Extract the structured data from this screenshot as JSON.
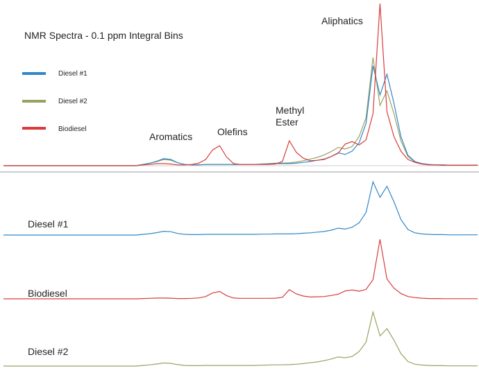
{
  "chart_data": {
    "type": "line",
    "title": "NMR Spectra - 0.1 ppm Integral Bins",
    "x": [
      0,
      1,
      2,
      3,
      4,
      5,
      6,
      7,
      8,
      9,
      10,
      11,
      12,
      13,
      14,
      15,
      16,
      17,
      18,
      19,
      20,
      21,
      22,
      23,
      24,
      25,
      26,
      27,
      28,
      29,
      30,
      31,
      32,
      33,
      34,
      35,
      36,
      37,
      38,
      39,
      40,
      41,
      42,
      43,
      44,
      45,
      46,
      47,
      48,
      49,
      50,
      51,
      52,
      53,
      54,
      55,
      56,
      57,
      58,
      59,
      60,
      61,
      62,
      63,
      64,
      65,
      66,
      67,
      68
    ],
    "series": [
      {
        "name": "Diesel #1",
        "color": "#2f86c8",
        "values": [
          0,
          0,
          0,
          0,
          0,
          0,
          0,
          0,
          0,
          0,
          0,
          0,
          0,
          0,
          0,
          0,
          0,
          0,
          0,
          0,
          0.3,
          0.6,
          1.1,
          1.7,
          1.5,
          0.7,
          0.3,
          0.2,
          0.2,
          0.3,
          0.3,
          0.3,
          0.3,
          0.3,
          0.3,
          0.3,
          0.3,
          0.4,
          0.4,
          0.5,
          0.5,
          0.5,
          0.6,
          0.8,
          1.0,
          1.3,
          1.6,
          2.2,
          3.1,
          2.7,
          3.5,
          5.5,
          10.2,
          24.0,
          17.0,
          22.0,
          15.0,
          7.0,
          2.5,
          1.0,
          0.5,
          0.3,
          0.2,
          0.2,
          0.1,
          0.1,
          0.1,
          0.1,
          0.1
        ]
      },
      {
        "name": "Diesel #2",
        "color": "#9aa060",
        "values": [
          0,
          0,
          0,
          0,
          0,
          0,
          0,
          0,
          0,
          0,
          0,
          0,
          0,
          0,
          0,
          0,
          0,
          0,
          0,
          0,
          0.3,
          0.6,
          1.0,
          1.5,
          1.3,
          0.7,
          0.3,
          0.2,
          0.2,
          0.3,
          0.3,
          0.3,
          0.3,
          0.3,
          0.3,
          0.3,
          0.3,
          0.4,
          0.5,
          0.6,
          0.6,
          0.7,
          0.9,
          1.2,
          1.6,
          2.0,
          2.6,
          3.4,
          4.4,
          4.0,
          4.6,
          7.0,
          11.5,
          26.0,
          14.5,
          18.0,
          12.5,
          6.0,
          2.2,
          0.9,
          0.5,
          0.3,
          0.2,
          0.2,
          0.1,
          0.1,
          0.1,
          0.1,
          0.1
        ]
      },
      {
        "name": "Biodiesel",
        "color": "#d93a3a",
        "values": [
          0,
          0,
          0,
          0,
          0,
          0,
          0,
          0,
          0,
          0,
          0,
          0,
          0,
          0,
          0,
          0,
          0,
          0,
          0,
          0,
          0.2,
          0.3,
          0.5,
          0.5,
          0.4,
          0.2,
          0.2,
          0.3,
          0.6,
          1.5,
          3.8,
          4.8,
          2.1,
          0.5,
          0.3,
          0.3,
          0.3,
          0.3,
          0.3,
          0.4,
          1.0,
          6.0,
          3.2,
          1.8,
          1.2,
          1.3,
          1.5,
          2.2,
          3.0,
          5.2,
          5.8,
          5.0,
          6.2,
          12.5,
          39.0,
          13.0,
          7.0,
          3.5,
          1.5,
          0.8,
          0.4,
          0.2,
          0.2,
          0.1,
          0.1,
          0.1,
          0.1,
          0.1,
          0.1
        ]
      }
    ],
    "annotations": [
      "Aromatics",
      "Olefins",
      "Methyl",
      "Ester",
      "Aliphatics"
    ],
    "panel_labels": [
      "Diesel #1",
      "Biodiesel",
      "Diesel #2"
    ],
    "legend_position": "left",
    "grid": false
  }
}
